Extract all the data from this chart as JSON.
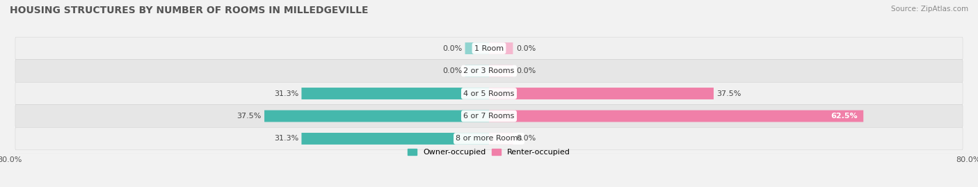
{
  "title": "HOUSING STRUCTURES BY NUMBER OF ROOMS IN MILLEDGEVILLE",
  "source": "Source: ZipAtlas.com",
  "categories": [
    "1 Room",
    "2 or 3 Rooms",
    "4 or 5 Rooms",
    "6 or 7 Rooms",
    "8 or more Rooms"
  ],
  "owner_values": [
    0.0,
    0.0,
    31.3,
    37.5,
    31.3
  ],
  "renter_values": [
    0.0,
    0.0,
    37.5,
    62.5,
    0.0
  ],
  "owner_color": "#45b8ac",
  "renter_color": "#f07fa8",
  "owner_zero_color": "#90d4d0",
  "renter_zero_color": "#f5b8cf",
  "background_color": "#f2f2f2",
  "row_colors": [
    "#f0f0f0",
    "#e6e6e6"
  ],
  "xlim_left": -80,
  "xlim_right": 80,
  "owner_label": "Owner-occupied",
  "renter_label": "Renter-occupied",
  "bar_height": 0.52,
  "title_fontsize": 10,
  "label_fontsize": 8,
  "category_fontsize": 8,
  "source_fontsize": 7.5,
  "legend_fontsize": 8
}
